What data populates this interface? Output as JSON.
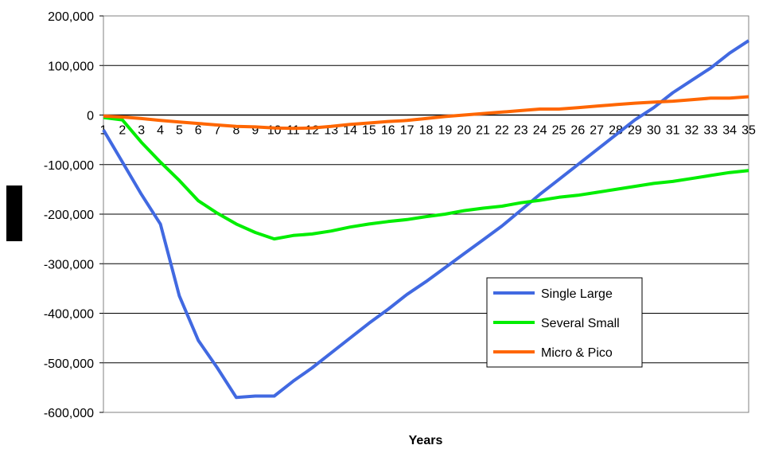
{
  "chart_data": {
    "type": "line",
    "title": "",
    "xlabel": "Years",
    "ylabel": "",
    "categories": [
      "1",
      "2",
      "3",
      "4",
      "5",
      "6",
      "7",
      "8",
      "9",
      "10",
      "11",
      "12",
      "13",
      "14",
      "15",
      "16",
      "17",
      "18",
      "19",
      "20",
      "21",
      "22",
      "23",
      "24",
      "25",
      "26",
      "27",
      "28",
      "29",
      "30",
      "31",
      "32",
      "33",
      "34",
      "35"
    ],
    "ylim": [
      -600000,
      200000
    ],
    "yticks": [
      200000,
      100000,
      0,
      -100000,
      -200000,
      -300000,
      -400000,
      -500000,
      -600000
    ],
    "ytick_labels": [
      "200,000",
      "100,000",
      "0",
      "-100,000",
      "-200,000",
      "-300,000",
      "-400,000",
      "-500,000",
      "-600,000"
    ],
    "grid": true,
    "legend_position": "lower-right",
    "series": [
      {
        "name": "Single Large",
        "color": "#4169e1",
        "values": [
          -30000,
          -95000,
          -160000,
          -220000,
          -365000,
          -455000,
          -510000,
          -570000,
          -567000,
          -567000,
          -537000,
          -510000,
          -480000,
          -450000,
          -420000,
          -392000,
          -362000,
          -336000,
          -308000,
          -280000,
          -252000,
          -224000,
          -192000,
          -160000,
          -130000,
          -100000,
          -70000,
          -40000,
          -10000,
          15000,
          45000,
          70000,
          95000,
          125000,
          150000
        ]
      },
      {
        "name": "Several Small",
        "color": "#00ee00",
        "values": [
          -5000,
          -10000,
          -55000,
          -95000,
          -132000,
          -173000,
          -198000,
          -220000,
          -237000,
          -250000,
          -243000,
          -240000,
          -234000,
          -226000,
          -220000,
          -215000,
          -211000,
          -205000,
          -200000,
          -193000,
          -188000,
          -184000,
          -177000,
          -172000,
          -166000,
          -162000,
          -156000,
          -150000,
          -144000,
          -138000,
          -134000,
          -128000,
          -122000,
          -116000,
          -112000
        ]
      },
      {
        "name": "Micro & Pico",
        "color": "#ff6600",
        "values": [
          -2000,
          -4000,
          -7000,
          -11000,
          -14000,
          -17000,
          -20000,
          -23000,
          -24000,
          -26000,
          -27000,
          -26000,
          -23000,
          -19000,
          -16000,
          -13000,
          -11000,
          -7000,
          -3000,
          0,
          3000,
          6000,
          9000,
          12000,
          12000,
          15000,
          18000,
          21000,
          24000,
          26000,
          28000,
          31000,
          34000,
          34000,
          37000
        ]
      }
    ]
  }
}
